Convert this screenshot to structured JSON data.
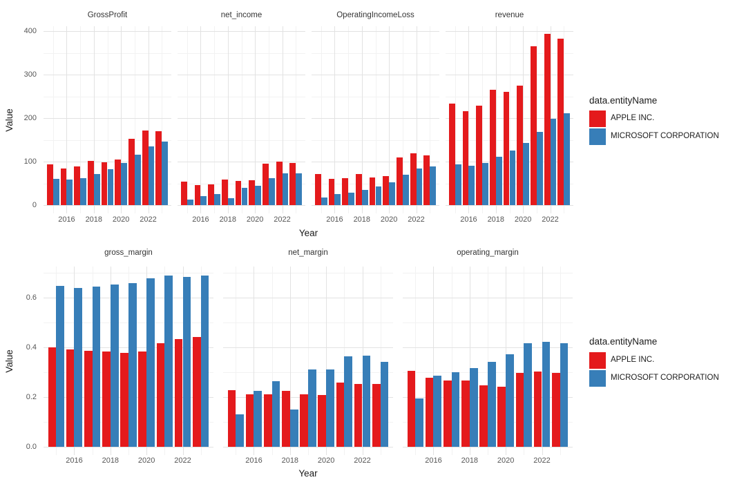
{
  "colors": {
    "apple": "#E41A1C",
    "microsoft": "#377EB8",
    "grid_major": "#E2E2E2",
    "grid_minor": "#F2F2F2",
    "axis_text": "#555555",
    "strip_text": "#333333",
    "title_text": "#1A1A1A",
    "background": "#FFFFFF"
  },
  "legend": {
    "title": "data.entityName",
    "entries": [
      {
        "key": "apple",
        "label": "APPLE INC."
      },
      {
        "key": "microsoft",
        "label": "MICROSOFT CORPORATION"
      }
    ]
  },
  "chart_data": [
    {
      "type": "bar",
      "title": "",
      "xlabel": "Year",
      "ylabel": "Value",
      "legend_title": "data.entityName",
      "legend_position": "right",
      "grid": true,
      "years": [
        2015,
        2016,
        2017,
        2018,
        2019,
        2020,
        2021,
        2022,
        2023
      ],
      "xticks": {
        "values": [
          2016,
          2018,
          2020,
          2022
        ],
        "labels": [
          "2016",
          "2018",
          "2020",
          "2022"
        ]
      },
      "yticks": {
        "values": [
          0,
          100,
          200,
          300,
          400
        ],
        "labels": [
          "0",
          "100",
          "200",
          "300",
          "400"
        ]
      },
      "ylim": [
        0,
        411
      ],
      "facets": [
        {
          "title": "GrossProfit",
          "series": [
            {
              "name": "APPLE INC.",
              "key": "apple",
              "values": [
                93.6,
                84.3,
                88.2,
                101.8,
                98.4,
                105.0,
                152.8,
                170.8,
                169.1
              ]
            },
            {
              "name": "MICROSOFT CORPORATION",
              "key": "microsoft",
              "values": [
                60.5,
                58.4,
                62.3,
                72.0,
                82.9,
                96.9,
                115.9,
                135.6,
                146.1
              ]
            }
          ]
        },
        {
          "title": "net_income",
          "series": [
            {
              "name": "APPLE INC.",
              "key": "apple",
              "values": [
                53.4,
                45.7,
                48.4,
                59.5,
                55.3,
                57.4,
                94.7,
                99.8,
                97.0
              ]
            },
            {
              "name": "MICROSOFT CORPORATION",
              "key": "microsoft",
              "values": [
                12.2,
                20.5,
                25.5,
                16.6,
                39.2,
                44.3,
                61.3,
                72.7,
                72.4
              ]
            }
          ]
        },
        {
          "title": "OperatingIncomeLoss",
          "series": [
            {
              "name": "APPLE INC.",
              "key": "apple",
              "values": [
                71.2,
                60.0,
                61.3,
                70.9,
                63.9,
                66.3,
                108.9,
                119.4,
                114.3
              ]
            },
            {
              "name": "MICROSOFT CORPORATION",
              "key": "microsoft",
              "values": [
                18.2,
                26.1,
                29.0,
                35.1,
                43.0,
                53.0,
                69.9,
                83.4,
                88.5
              ]
            }
          ]
        },
        {
          "title": "revenue",
          "series": [
            {
              "name": "APPLE INC.",
              "key": "apple",
              "values": [
                233.7,
                215.6,
                229.2,
                265.6,
                260.2,
                274.5,
                365.8,
                394.3,
                383.3
              ]
            },
            {
              "name": "MICROSOFT CORPORATION",
              "key": "microsoft",
              "values": [
                93.6,
                91.2,
                96.6,
                110.4,
                125.8,
                143.0,
                168.1,
                198.3,
                211.9
              ]
            }
          ]
        }
      ]
    },
    {
      "type": "bar",
      "title": "",
      "xlabel": "Year",
      "ylabel": "Value",
      "legend_title": "data.entityName",
      "legend_position": "right",
      "grid": true,
      "years": [
        2015,
        2016,
        2017,
        2018,
        2019,
        2020,
        2021,
        2022,
        2023
      ],
      "xticks": {
        "values": [
          2016,
          2018,
          2020,
          2022
        ],
        "labels": [
          "2016",
          "2018",
          "2020",
          "2022"
        ]
      },
      "yticks": {
        "values": [
          0,
          0.2,
          0.4,
          0.6
        ],
        "labels": [
          "0.0",
          "0.2",
          "0.4",
          "0.6"
        ]
      },
      "ylim": [
        0,
        0.725
      ],
      "facets": [
        {
          "title": "gross_margin",
          "series": [
            {
              "name": "APPLE INC.",
              "key": "apple",
              "values": [
                0.401,
                0.391,
                0.385,
                0.383,
                0.378,
                0.382,
                0.418,
                0.433,
                0.441
              ]
            },
            {
              "name": "MICROSOFT CORPORATION",
              "key": "microsoft",
              "values": [
                0.646,
                0.64,
                0.645,
                0.652,
                0.659,
                0.678,
                0.689,
                0.684,
                0.689
              ]
            }
          ]
        },
        {
          "title": "net_margin",
          "series": [
            {
              "name": "APPLE INC.",
              "key": "apple",
              "values": [
                0.229,
                0.212,
                0.211,
                0.224,
                0.212,
                0.209,
                0.259,
                0.253,
                0.253
              ]
            },
            {
              "name": "MICROSOFT CORPORATION",
              "key": "microsoft",
              "values": [
                0.13,
                0.225,
                0.264,
                0.15,
                0.311,
                0.31,
                0.365,
                0.367,
                0.342
              ]
            }
          ]
        },
        {
          "title": "operating_margin",
          "series": [
            {
              "name": "APPLE INC.",
              "key": "apple",
              "values": [
                0.305,
                0.278,
                0.267,
                0.267,
                0.246,
                0.241,
                0.298,
                0.303,
                0.298
              ]
            },
            {
              "name": "MICROSOFT CORPORATION",
              "key": "microsoft",
              "values": [
                0.194,
                0.287,
                0.3,
                0.318,
                0.342,
                0.371,
                0.416,
                0.421,
                0.418
              ]
            }
          ]
        }
      ]
    }
  ]
}
